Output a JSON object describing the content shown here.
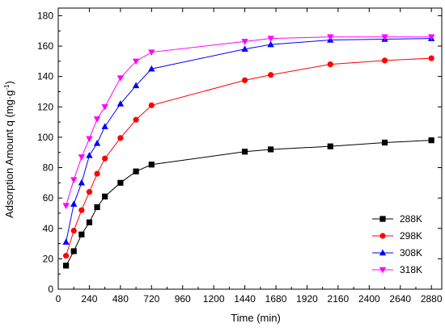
{
  "chart_data": {
    "type": "line",
    "xlabel": "Time (min)",
    "ylabel_main": "Adsorption Amount q (mg·g",
    "ylabel_sup": "-1",
    "ylabel_end": ")",
    "xlim": [
      0,
      2960
    ],
    "ylim": [
      0,
      185
    ],
    "xticks": [
      0,
      240,
      480,
      720,
      960,
      1200,
      1440,
      1680,
      1920,
      2160,
      2400,
      2640,
      2880
    ],
    "yticks": [
      0,
      20,
      40,
      60,
      80,
      100,
      120,
      140,
      160,
      180
    ],
    "x": [
      60,
      120,
      180,
      240,
      300,
      360,
      480,
      600,
      720,
      1440,
      1640,
      2100,
      2520,
      2880
    ],
    "series": [
      {
        "name": "288K",
        "color": "#000000",
        "marker": "square",
        "values": [
          15.5,
          25,
          36,
          44,
          54,
          61,
          70,
          77.5,
          82,
          90.5,
          92,
          94,
          96.5,
          98
        ]
      },
      {
        "name": "298K",
        "color": "#ff0000",
        "marker": "circle",
        "values": [
          22,
          38.5,
          52,
          64,
          76,
          86,
          99.5,
          111.5,
          121,
          137.5,
          141,
          148,
          150.5,
          152
        ]
      },
      {
        "name": "308K",
        "color": "#0000ff",
        "marker": "triangle-up",
        "values": [
          31,
          56,
          70,
          88,
          96,
          107,
          122,
          134,
          145,
          158,
          161,
          164,
          164.5,
          165
        ]
      },
      {
        "name": "318K",
        "color": "#ff00ff",
        "marker": "triangle-down",
        "values": [
          55,
          72,
          87,
          99,
          112,
          120,
          139,
          150,
          156,
          163,
          165,
          166,
          166,
          166
        ]
      }
    ],
    "legend_position": "bottom-right",
    "grid": false
  }
}
